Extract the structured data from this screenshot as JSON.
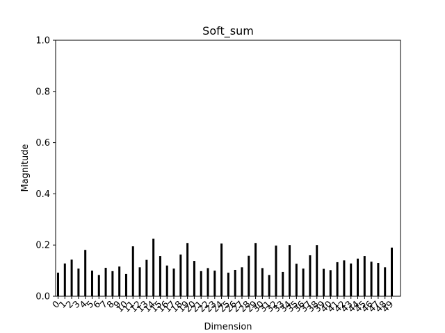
{
  "chart_data": {
    "type": "bar",
    "title": "Soft_sum",
    "xlabel": "Dimension",
    "ylabel": "Magnitude",
    "ylim": [
      0,
      1.0
    ],
    "yticks": [
      "0.0",
      "0.2",
      "0.4",
      "0.6",
      "0.8",
      "1.0"
    ],
    "grid": false,
    "legend": "none",
    "bar_color": "#000000",
    "categories": [
      "0",
      "1",
      "2",
      "3",
      "4",
      "5",
      "6",
      "7",
      "8",
      "9",
      "10",
      "11",
      "12",
      "13",
      "14",
      "15",
      "16",
      "17",
      "18",
      "19",
      "20",
      "21",
      "22",
      "23",
      "24",
      "25",
      "26",
      "27",
      "28",
      "29",
      "30",
      "31",
      "32",
      "33",
      "34",
      "35",
      "36",
      "37",
      "38",
      "39",
      "40",
      "41",
      "42",
      "43",
      "44",
      "45",
      "46",
      "47",
      "48",
      "49"
    ],
    "values": [
      0.092,
      0.128,
      0.143,
      0.108,
      0.181,
      0.1,
      0.083,
      0.111,
      0.098,
      0.116,
      0.087,
      0.195,
      0.113,
      0.142,
      0.225,
      0.157,
      0.12,
      0.108,
      0.163,
      0.208,
      0.138,
      0.098,
      0.11,
      0.1,
      0.206,
      0.092,
      0.103,
      0.113,
      0.158,
      0.208,
      0.11,
      0.083,
      0.198,
      0.095,
      0.2,
      0.127,
      0.108,
      0.16,
      0.2,
      0.107,
      0.102,
      0.133,
      0.14,
      0.128,
      0.147,
      0.157,
      0.135,
      0.13,
      0.113,
      0.19
    ]
  }
}
